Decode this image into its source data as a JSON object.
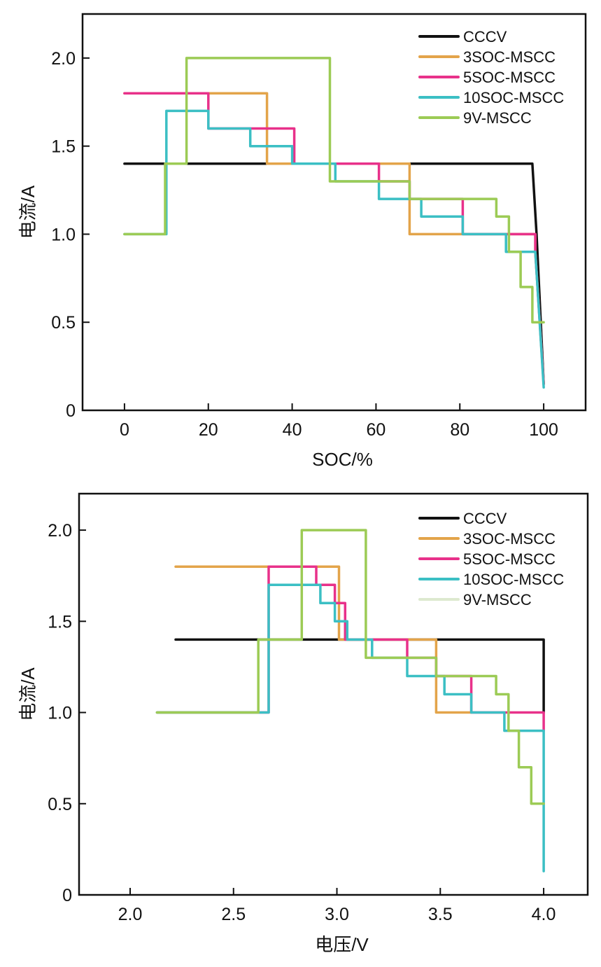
{
  "chart_data": [
    {
      "type": "line",
      "title": "",
      "xlabel": "SOC/%",
      "ylabel": "电流/A",
      "xlim": [
        -10,
        110
      ],
      "ylim": [
        0,
        2.25
      ],
      "xticks": [
        0,
        20,
        40,
        60,
        80,
        100
      ],
      "xtick_labels": [
        "0",
        "20",
        "40",
        "60",
        "80",
        "100"
      ],
      "yticks": [
        0,
        0.5,
        1.0,
        1.5,
        2.0
      ],
      "ytick_labels": [
        "0",
        "0.5",
        "1.0",
        "1.5",
        "2.0"
      ],
      "grid": false,
      "legend_position": "top-right",
      "series": [
        {
          "name": "CCCV",
          "color": "#111111",
          "points": [
            [
              0,
              1.4
            ],
            [
              97.3,
              1.4
            ],
            [
              98.3,
              1.0
            ],
            [
              100,
              0.15
            ]
          ]
        },
        {
          "name": "3SOC-MSCC",
          "color": "#E3A44A",
          "points": [
            [
              0,
              1.8
            ],
            [
              34,
              1.8
            ],
            [
              34,
              1.4
            ],
            [
              68,
              1.4
            ],
            [
              68,
              1.0
            ],
            [
              98,
              1.0
            ],
            [
              98,
              0.9
            ],
            [
              100,
              0.15
            ]
          ]
        },
        {
          "name": "5SOC-MSCC",
          "color": "#E8318A",
          "points": [
            [
              0,
              1.8
            ],
            [
              20,
              1.8
            ],
            [
              20,
              1.6
            ],
            [
              40.5,
              1.6
            ],
            [
              40.5,
              1.4
            ],
            [
              60.7,
              1.4
            ],
            [
              60.7,
              1.3
            ],
            [
              68,
              1.3
            ],
            [
              68,
              1.2
            ],
            [
              80.7,
              1.2
            ],
            [
              80.7,
              1.0
            ],
            [
              98,
              1.0
            ],
            [
              98,
              0.9
            ],
            [
              100,
              0.15
            ]
          ]
        },
        {
          "name": "10SOC-MSCC",
          "color": "#3BBFC4",
          "points": [
            [
              0,
              1.0
            ],
            [
              10,
              1.0
            ],
            [
              10,
              1.7
            ],
            [
              20,
              1.7
            ],
            [
              20,
              1.6
            ],
            [
              30,
              1.6
            ],
            [
              30,
              1.5
            ],
            [
              40,
              1.5
            ],
            [
              40,
              1.4
            ],
            [
              50.3,
              1.4
            ],
            [
              50.3,
              1.3
            ],
            [
              60.7,
              1.3
            ],
            [
              60.7,
              1.2
            ],
            [
              70.8,
              1.2
            ],
            [
              70.8,
              1.1
            ],
            [
              80.7,
              1.1
            ],
            [
              80.7,
              1.0
            ],
            [
              91,
              1.0
            ],
            [
              91,
              0.9
            ],
            [
              98,
              0.9
            ],
            [
              100,
              0.13
            ]
          ]
        },
        {
          "name": "9V-MSCC",
          "color": "#9CCB55",
          "points": [
            [
              0,
              1.0
            ],
            [
              9.7,
              1.0
            ],
            [
              9.7,
              1.4
            ],
            [
              14.8,
              1.4
            ],
            [
              14.8,
              2.0
            ],
            [
              49,
              2.0
            ],
            [
              49,
              1.3
            ],
            [
              68,
              1.3
            ],
            [
              68,
              1.2
            ],
            [
              88.7,
              1.2
            ],
            [
              88.7,
              1.1
            ],
            [
              91.7,
              1.1
            ],
            [
              91.7,
              0.9
            ],
            [
              94.5,
              0.9
            ],
            [
              94.5,
              0.7
            ],
            [
              97.3,
              0.7
            ],
            [
              97.3,
              0.5
            ],
            [
              100,
              0.5
            ]
          ]
        }
      ]
    },
    {
      "type": "line",
      "title": "",
      "xlabel": "电压/V",
      "ylabel": "电流/A",
      "xlim": [
        1.753,
        4.213
      ],
      "ylim": [
        0,
        2.2
      ],
      "xticks": [
        2.0,
        2.5,
        3.0,
        3.5,
        4.0
      ],
      "xtick_labels": [
        "2.0",
        "2.5",
        "3.0",
        "3.5",
        "4.0"
      ],
      "yticks": [
        0,
        0.5,
        1.0,
        1.5,
        2.0
      ],
      "ytick_labels": [
        "0",
        "0.5",
        "1.0",
        "1.5",
        "2.0"
      ],
      "grid": false,
      "legend_position": "top-right",
      "series": [
        {
          "name": "CCCV",
          "color": "#111111",
          "points": [
            [
              2.22,
              1.4
            ],
            [
              4.0,
              1.4
            ],
            [
              4.0,
              1.0
            ]
          ]
        },
        {
          "name": "3SOC-MSCC",
          "color": "#E3A44A",
          "points": [
            [
              2.22,
              1.8
            ],
            [
              3.01,
              1.8
            ],
            [
              3.01,
              1.4
            ],
            [
              3.48,
              1.4
            ],
            [
              3.48,
              1.0
            ],
            [
              3.65,
              1.0
            ]
          ]
        },
        {
          "name": "5SOC-MSCC",
          "color": "#E8318A",
          "points": [
            [
              2.13,
              1.0
            ],
            [
              2.67,
              1.0
            ],
            [
              2.67,
              1.8
            ],
            [
              2.9,
              1.8
            ],
            [
              2.9,
              1.7
            ],
            [
              2.99,
              1.7
            ],
            [
              2.99,
              1.6
            ],
            [
              3.04,
              1.6
            ],
            [
              3.04,
              1.4
            ],
            [
              3.34,
              1.4
            ],
            [
              3.34,
              1.3
            ],
            [
              3.48,
              1.3
            ],
            [
              3.48,
              1.2
            ],
            [
              3.65,
              1.2
            ],
            [
              3.65,
              1.0
            ],
            [
              4.0,
              1.0
            ],
            [
              4.0,
              0.9
            ]
          ]
        },
        {
          "name": "10SOC-MSCC",
          "color": "#3BBFC4",
          "points": [
            [
              2.13,
              1.0
            ],
            [
              2.67,
              1.0
            ],
            [
              2.67,
              1.7
            ],
            [
              2.92,
              1.7
            ],
            [
              2.92,
              1.6
            ],
            [
              2.99,
              1.6
            ],
            [
              2.99,
              1.5
            ],
            [
              3.05,
              1.5
            ],
            [
              3.05,
              1.4
            ],
            [
              3.17,
              1.4
            ],
            [
              3.17,
              1.3
            ],
            [
              3.34,
              1.3
            ],
            [
              3.34,
              1.2
            ],
            [
              3.52,
              1.2
            ],
            [
              3.52,
              1.1
            ],
            [
              3.65,
              1.1
            ],
            [
              3.65,
              1.0
            ],
            [
              3.81,
              1.0
            ],
            [
              3.81,
              0.9
            ],
            [
              4.0,
              0.9
            ],
            [
              4.0,
              0.13
            ]
          ]
        },
        {
          "name": "9V-MSCC",
          "color": "#9CCB55",
          "legend_color": "#DDE9CF",
          "points": [
            [
              2.13,
              1.0
            ],
            [
              2.62,
              1.0
            ],
            [
              2.62,
              1.4
            ],
            [
              2.83,
              1.4
            ],
            [
              2.83,
              2.0
            ],
            [
              3.14,
              2.0
            ],
            [
              3.14,
              1.3
            ],
            [
              3.48,
              1.3
            ],
            [
              3.48,
              1.2
            ],
            [
              3.77,
              1.2
            ],
            [
              3.77,
              1.1
            ],
            [
              3.83,
              1.1
            ],
            [
              3.83,
              0.9
            ],
            [
              3.88,
              0.9
            ],
            [
              3.88,
              0.7
            ],
            [
              3.94,
              0.7
            ],
            [
              3.94,
              0.5
            ],
            [
              4.0,
              0.5
            ]
          ]
        }
      ]
    }
  ]
}
